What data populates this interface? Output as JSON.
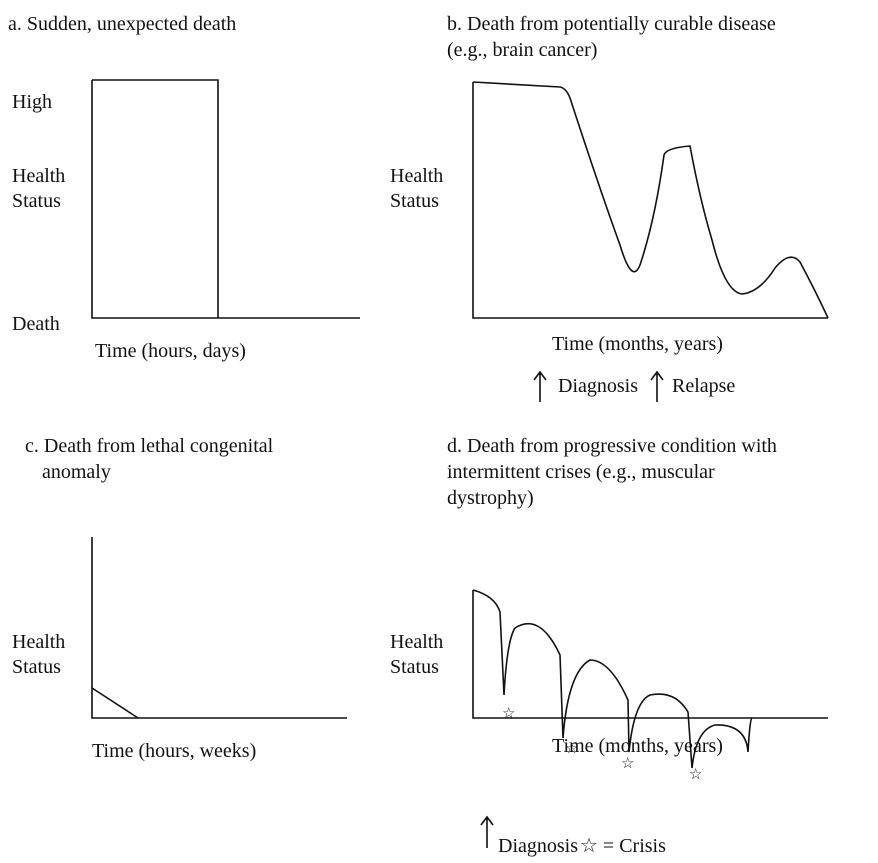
{
  "panels": [
    {
      "title": [
        "a. Sudden, unexpected death"
      ],
      "y_labels": [
        "High",
        "Health",
        "Status",
        "Death"
      ],
      "x_label": "Time (hours, days)"
    },
    {
      "title": [
        "b. Death from potentially curable disease",
        "(e.g., brain cancer)"
      ],
      "y_labels": [
        "Health",
        "Status"
      ],
      "x_label": "Time (months, years)",
      "legend": [
        "Diagnosis",
        "Relapse"
      ]
    },
    {
      "title": [
        "c. Death from lethal congenital",
        "anomaly"
      ],
      "y_labels": [
        "Health",
        "Status"
      ],
      "x_label": "Time (hours, weeks)"
    },
    {
      "title": [
        "d. Death from progressive condition with",
        "intermittent crises (e.g., muscular",
        "dystrophy)"
      ],
      "y_labels": [
        "Health",
        "Status"
      ],
      "x_label": "Time (months, years)",
      "legend": [
        "Diagnosis",
        "☆ = Crisis"
      ]
    }
  ]
}
